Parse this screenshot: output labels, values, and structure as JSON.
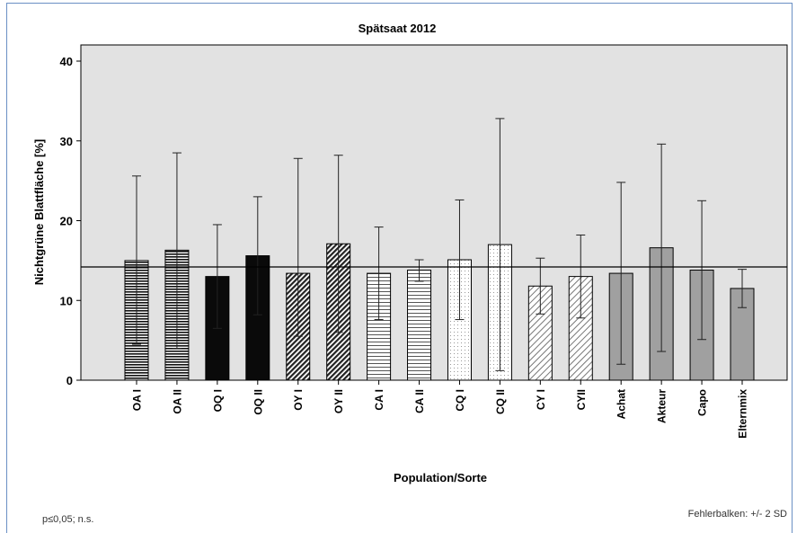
{
  "chart_data": {
    "type": "bar",
    "title": "Spätsaat 2012",
    "xlabel": "Population/Sorte",
    "ylabel": "Nichtgrüne Blattfläche [%]",
    "ylim": [
      0,
      42
    ],
    "yticks": [
      0,
      10,
      20,
      30,
      40
    ],
    "reference_line": 14.2,
    "grid": false,
    "categories": [
      "OA I",
      "OA II",
      "OQ I",
      "OQ II",
      "OY I",
      "OY II",
      "CA I",
      "CA II",
      "CQ I",
      "CQ II",
      "CY I",
      "CYII",
      "Achat",
      "Akteur",
      "Capo",
      "Elternmix"
    ],
    "values": [
      15.0,
      16.3,
      13.0,
      15.6,
      13.4,
      17.1,
      13.4,
      13.8,
      15.1,
      17.0,
      11.8,
      13.0,
      13.4,
      16.6,
      13.8,
      11.5
    ],
    "error_upper": [
      25.6,
      28.5,
      19.5,
      23.0,
      27.8,
      28.2,
      19.2,
      15.1,
      22.6,
      32.8,
      15.3,
      18.2,
      24.8,
      29.6,
      22.5,
      13.9
    ],
    "error_lower": [
      4.5,
      4.0,
      6.5,
      8.2,
      5.5,
      6.0,
      7.6,
      12.4,
      7.6,
      1.2,
      8.3,
      7.8,
      2.0,
      3.6,
      5.1,
      9.1
    ],
    "fills": [
      "hlines",
      "hlines",
      "black",
      "black",
      "diag-dense",
      "diag-dense",
      "hlines-light",
      "hlines-light",
      "dots",
      "dots",
      "diag-light",
      "diag-light",
      "gray",
      "gray",
      "gray",
      "gray"
    ],
    "colors": {
      "plot_background": "#e2e2e2",
      "gray_bar": "#a0a0a0",
      "frame": "#6a8fc4"
    },
    "error_bar_note": "Fehlerbalken: +/- 2 SD",
    "significance_note": "p≤0,05; n.s."
  }
}
